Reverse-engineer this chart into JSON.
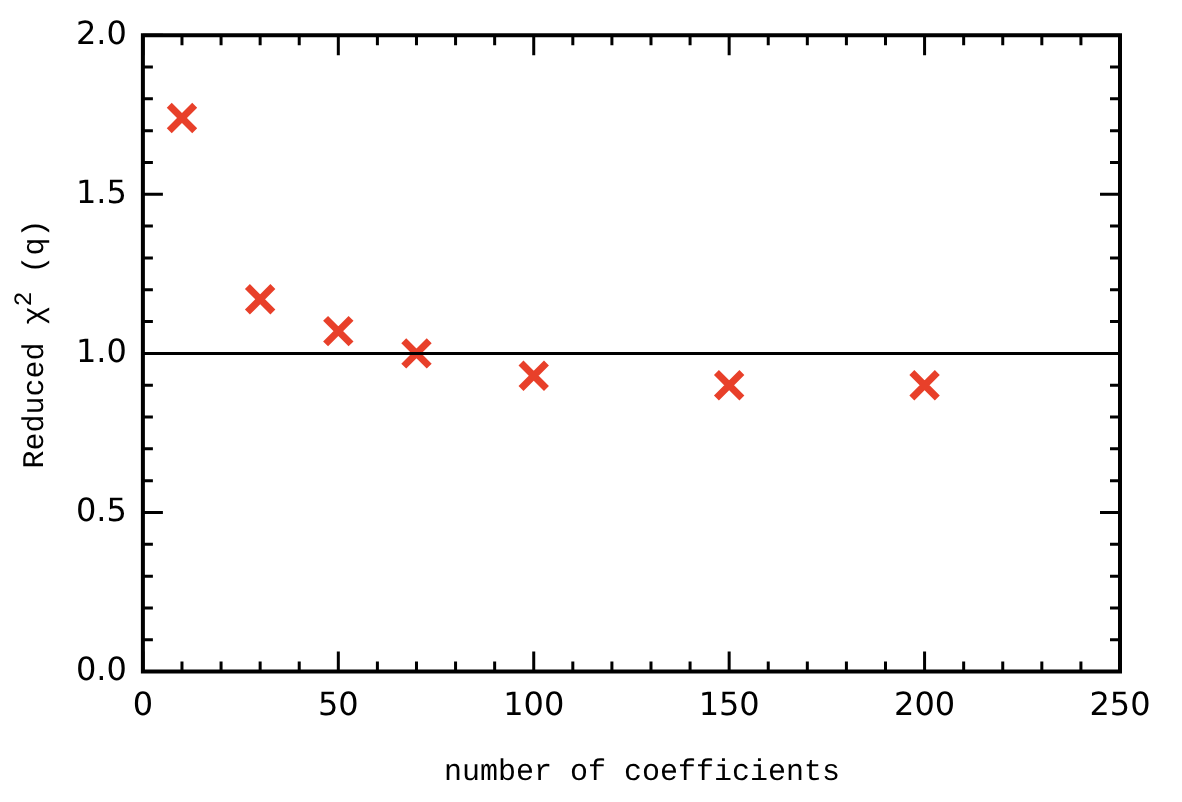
{
  "chart_data": {
    "type": "scatter",
    "xlabel": "number of coefficients",
    "ylabel": "Reduced χ$^{2}$ (q)",
    "x": [
      10,
      30,
      50,
      70,
      100,
      150,
      200
    ],
    "series": [
      {
        "color": "#e8402a",
        "values": [
          1.74,
          1.17,
          1.07,
          1.0,
          0.93,
          0.9,
          0.9
        ]
      }
    ],
    "marker": "cross",
    "xlim": [
      0,
      250
    ],
    "ylim": [
      0,
      2.0
    ],
    "xticks": [
      0,
      {
        "value": 10,
        "label": null
      },
      {
        "value": 20,
        "label": null
      },
      {
        "value": 30,
        "label": null
      },
      {
        "value": 40,
        "label": null
      },
      50,
      {
        "value": 60,
        "label": null
      },
      {
        "value": 70,
        "label": null
      },
      {
        "value": 80,
        "label": null
      },
      {
        "value": 90,
        "label": null
      },
      100,
      {
        "value": 110,
        "label": null
      },
      {
        "value": 120,
        "label": null
      },
      {
        "value": 130,
        "label": null
      },
      {
        "value": 140,
        "label": null
      },
      150,
      {
        "value": 160,
        "label": null
      },
      {
        "value": 170,
        "label": null
      },
      {
        "value": 180,
        "label": null
      },
      {
        "value": 190,
        "label": null
      },
      200,
      {
        "value": 210,
        "label": null
      },
      {
        "value": 220,
        "label": null
      },
      {
        "value": 230,
        "label": null
      },
      {
        "value": 240,
        "label": null
      },
      250
    ],
    "yticks": [
      {
        "value": 0,
        "label": "0.0"
      },
      {
        "value": 0.1,
        "label": null
      },
      {
        "value": 0.2,
        "label": null
      },
      {
        "value": 0.3,
        "label": null
      },
      {
        "value": 0.4,
        "label": null
      },
      0.5,
      {
        "value": 0.6,
        "label": null
      },
      {
        "value": 0.7,
        "label": null
      },
      {
        "value": 0.8,
        "label": null
      },
      {
        "value": 0.9,
        "label": null
      },
      {
        "value": 1,
        "label": "1.0"
      },
      {
        "value": 1.1,
        "label": null
      },
      {
        "value": 1.2,
        "label": null
      },
      {
        "value": 1.3,
        "label": null
      },
      {
        "value": 1.4,
        "label": null
      },
      1.5,
      {
        "value": 1.6,
        "label": null
      },
      {
        "value": 1.7,
        "label": null
      },
      {
        "value": 1.8,
        "label": null
      },
      {
        "value": 1.9,
        "label": null
      },
      {
        "value": 2,
        "label": "2.0"
      }
    ],
    "ref_lines": [
      {
        "axis": "y",
        "value": 1.0,
        "color": "#000000"
      }
    ],
    "grid": false,
    "legend": false
  }
}
